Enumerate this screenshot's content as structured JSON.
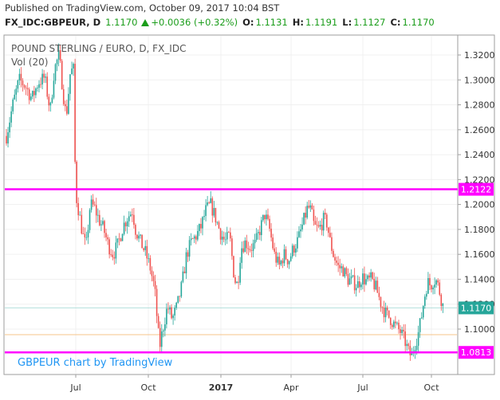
{
  "header": {
    "published": "Published on TradingView.com, October 09, 2017 10:04 BST",
    "symbol": "FX_IDC:GBPEUR, D",
    "last": "1.1170",
    "change": "+0.0036 (+0.32%)",
    "o_label": "O:",
    "o_value": "1.1131",
    "h_label": "H:",
    "h_value": "1.1191",
    "l_label": "L:",
    "l_value": "1.1127",
    "c_label": "C:",
    "c_value": "1.1170"
  },
  "chart_data": {
    "type": "candlestick",
    "title": "POUND STERLING / EURO, D, FX_IDC",
    "subtitle": "Vol (20)",
    "watermark": "GBPEUR chart by TradingView",
    "y_ticks": [
      "1.3200",
      "1.3000",
      "1.2800",
      "1.2600",
      "1.2400",
      "1.2200",
      "1.2000",
      "1.1800",
      "1.1600",
      "1.1400",
      "1.1200",
      "1.1000"
    ],
    "x_ticks": [
      "Jul",
      "Oct",
      "2017",
      "Apr",
      "Jul",
      "Oct"
    ],
    "ylim": [
      1.076,
      1.328
    ],
    "levels": [
      {
        "value": 1.2122,
        "label": "1.2122",
        "color": "#ff00ff"
      },
      {
        "value": 1.0813,
        "label": "1.0813",
        "color": "#ff00ff"
      }
    ],
    "last_price": {
      "value": 1.117,
      "label": "1.1170",
      "color": "#26a69a"
    },
    "orange_line": 1.0955,
    "up_color": "#26a69a",
    "down_color": "#ef5350",
    "anchors": [
      [
        0,
        1.255
      ],
      [
        8,
        1.28
      ],
      [
        16,
        1.3
      ],
      [
        24,
        1.295
      ],
      [
        32,
        1.285
      ],
      [
        40,
        1.298
      ],
      [
        48,
        1.302
      ],
      [
        55,
        1.275
      ],
      [
        60,
        1.308
      ],
      [
        66,
        1.32
      ],
      [
        72,
        1.285
      ],
      [
        75,
        1.27
      ],
      [
        80,
        1.305
      ],
      [
        84,
        1.31
      ],
      [
        86,
        1.235
      ],
      [
        88,
        1.205
      ],
      [
        92,
        1.19
      ],
      [
        96,
        1.175
      ],
      [
        100,
        1.165
      ],
      [
        105,
        1.2
      ],
      [
        110,
        1.198
      ],
      [
        116,
        1.188
      ],
      [
        122,
        1.18
      ],
      [
        128,
        1.167
      ],
      [
        134,
        1.16
      ],
      [
        140,
        1.168
      ],
      [
        146,
        1.182
      ],
      [
        152,
        1.19
      ],
      [
        158,
        1.195
      ],
      [
        162,
        1.18
      ],
      [
        168,
        1.17
      ],
      [
        174,
        1.162
      ],
      [
        180,
        1.15
      ],
      [
        186,
        1.132
      ],
      [
        190,
        1.1
      ],
      [
        192,
        1.085
      ],
      [
        196,
        1.1
      ],
      [
        202,
        1.118
      ],
      [
        208,
        1.108
      ],
      [
        214,
        1.118
      ],
      [
        220,
        1.135
      ],
      [
        226,
        1.16
      ],
      [
        232,
        1.17
      ],
      [
        238,
        1.175
      ],
      [
        244,
        1.182
      ],
      [
        250,
        1.195
      ],
      [
        256,
        1.2
      ],
      [
        262,
        1.19
      ],
      [
        268,
        1.178
      ],
      [
        274,
        1.17
      ],
      [
        280,
        1.175
      ],
      [
        286,
        1.14
      ],
      [
        290,
        1.135
      ],
      [
        294,
        1.165
      ],
      [
        300,
        1.17
      ],
      [
        306,
        1.165
      ],
      [
        312,
        1.168
      ],
      [
        318,
        1.18
      ],
      [
        324,
        1.192
      ],
      [
        330,
        1.18
      ],
      [
        336,
        1.16
      ],
      [
        342,
        1.15
      ],
      [
        348,
        1.16
      ],
      [
        354,
        1.155
      ],
      [
        360,
        1.165
      ],
      [
        366,
        1.172
      ],
      [
        372,
        1.185
      ],
      [
        378,
        1.198
      ],
      [
        382,
        1.195
      ],
      [
        386,
        1.182
      ],
      [
        392,
        1.18
      ],
      [
        398,
        1.188
      ],
      [
        402,
        1.185
      ],
      [
        406,
        1.17
      ],
      [
        410,
        1.16
      ],
      [
        416,
        1.15
      ],
      [
        422,
        1.148
      ],
      [
        428,
        1.14
      ],
      [
        434,
        1.138
      ],
      [
        440,
        1.135
      ],
      [
        446,
        1.142
      ],
      [
        452,
        1.138
      ],
      [
        458,
        1.14
      ],
      [
        464,
        1.132
      ],
      [
        470,
        1.12
      ],
      [
        476,
        1.112
      ],
      [
        482,
        1.108
      ],
      [
        488,
        1.102
      ],
      [
        494,
        1.098
      ],
      [
        500,
        1.09
      ],
      [
        504,
        1.082
      ],
      [
        508,
        1.078
      ],
      [
        512,
        1.088
      ],
      [
        516,
        1.095
      ],
      [
        520,
        1.108
      ],
      [
        524,
        1.125
      ],
      [
        528,
        1.138
      ],
      [
        532,
        1.135
      ],
      [
        536,
        1.14
      ],
      [
        540,
        1.138
      ],
      [
        544,
        1.128
      ],
      [
        548,
        1.117
      ]
    ]
  }
}
